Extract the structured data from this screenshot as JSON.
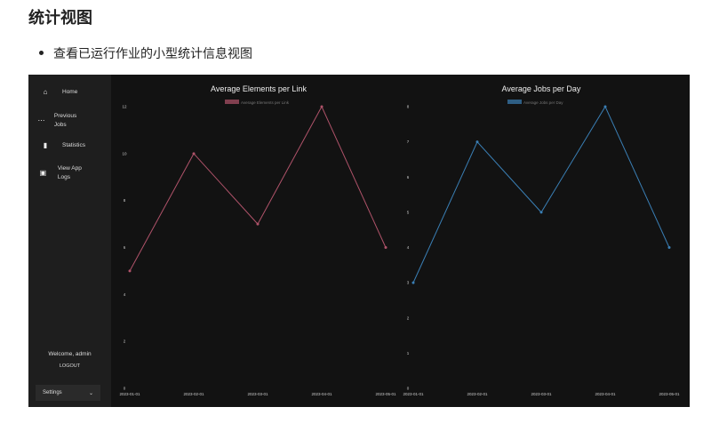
{
  "heading": "统计视图",
  "bullet": "查看已运行作业的小型统计信息视图",
  "sidebar": {
    "items": [
      {
        "label": "Home",
        "icon": "home-icon",
        "glyph": "⌂"
      },
      {
        "label": "Previous Jobs",
        "icon": "history-icon",
        "glyph": "⋯"
      },
      {
        "label": "Statistics",
        "icon": "bar-chart-icon",
        "glyph": "▮"
      },
      {
        "label": "View App Logs",
        "icon": "terminal-icon",
        "glyph": "▣"
      }
    ],
    "welcome": "Welcome, admin",
    "logout": "LOGOUT",
    "settings": "Settings"
  },
  "chart_data": [
    {
      "type": "line",
      "title": "Average Elements per Link",
      "categories": [
        "2023-01-01",
        "2023-02-01",
        "2023-03-01",
        "2023-04-01",
        "2023-05-01"
      ],
      "series": [
        {
          "name": "Average Elements per Link",
          "values": [
            5,
            10,
            7,
            12,
            6
          ],
          "color": "#b0536a"
        }
      ],
      "ylim": [
        0,
        12
      ],
      "yticks": [
        0,
        2,
        4,
        6,
        8,
        10,
        12
      ],
      "legend": "top",
      "grid": false
    },
    {
      "type": "line",
      "title": "Average Jobs per Day",
      "categories": [
        "2023-01-01",
        "2023-02-01",
        "2023-03-01",
        "2023-04-01",
        "2023-05-01"
      ],
      "series": [
        {
          "name": "Average Jobs per Day",
          "values": [
            3,
            7,
            5,
            8,
            4
          ],
          "color": "#3a7fb5"
        }
      ],
      "ylim": [
        0,
        8
      ],
      "yticks": [
        0,
        1,
        2,
        3,
        4,
        5,
        6,
        7,
        8
      ],
      "legend": "top",
      "grid": false
    }
  ]
}
